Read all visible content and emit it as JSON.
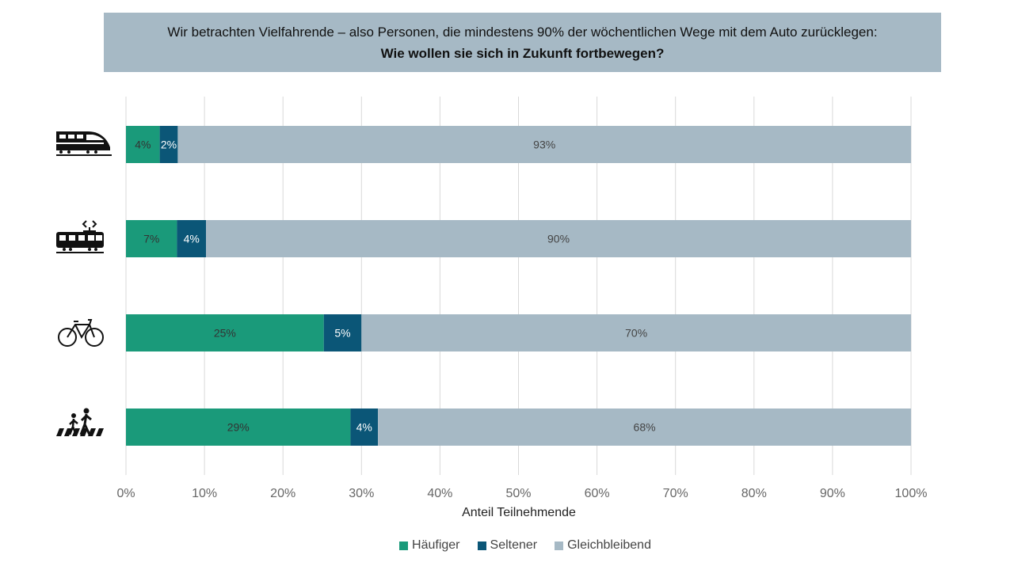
{
  "header": {
    "line1": "Wir betrachten Vielfahrende – also Personen, die mindestens 90% der wöchentlichen Wege mit dem Auto zurücklegen:",
    "line2": "Wie wollen sie sich in Zukunft fortbewegen?"
  },
  "colors": {
    "haeufiger": "#1a9a7a",
    "seltener": "#0b5677",
    "gleichbleibend": "#a6b9c5"
  },
  "chart_data": {
    "type": "bar",
    "orientation": "horizontal",
    "stacked": true,
    "categories": [
      "train-icon",
      "tram-icon",
      "bicycle-icon",
      "pedestrian-icon"
    ],
    "series": [
      {
        "name": "Häufiger",
        "values": [
          4.3,
          6.5,
          25.2,
          28.6
        ],
        "labels": [
          "4%",
          "7%",
          "25%",
          "29%"
        ]
      },
      {
        "name": "Seltener",
        "values": [
          2.3,
          3.7,
          4.8,
          3.5
        ],
        "labels": [
          "2%",
          "4%",
          "5%",
          "4%"
        ]
      },
      {
        "name": "Gleichbleibend",
        "values": [
          93.4,
          89.8,
          70.0,
          67.9
        ],
        "labels": [
          "93%",
          "90%",
          "70%",
          "68%"
        ]
      }
    ],
    "xlabel": "Anteil Teilnehmende",
    "xlim": [
      0,
      100
    ],
    "xticks": [
      "0%",
      "10%",
      "20%",
      "30%",
      "40%",
      "50%",
      "60%",
      "70%",
      "80%",
      "90%",
      "100%"
    ],
    "grid": true,
    "legend_position": "bottom"
  }
}
